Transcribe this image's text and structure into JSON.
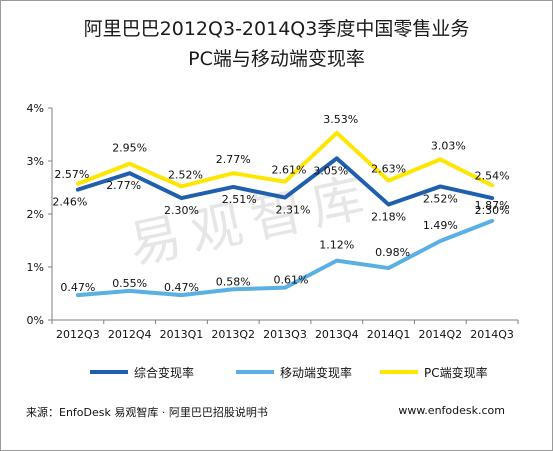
{
  "title_line1": "阿里巴巴2012Q3-2014Q3季度中国零售业务",
  "title_line2": "PC端与移动端变现率",
  "watermark": "易观智库",
  "source_text": "来源：EnfoDesk 易观智库 · 阿里巴巴招股说明书",
  "website": "www.enfodesk.com",
  "chart_data": {
    "type": "line",
    "categories": [
      "2012Q3",
      "2012Q4",
      "2013Q1",
      "2013Q2",
      "2013Q3",
      "2013Q4",
      "2014Q1",
      "2014Q2",
      "2014Q3"
    ],
    "y_ticks": [
      "0%",
      "1%",
      "2%",
      "3%",
      "4%"
    ],
    "ylim": [
      0,
      4
    ],
    "grid": false,
    "legend_position": "bottom",
    "series": [
      {
        "name": "综合变现率",
        "color": "#1f5fad",
        "values": [
          2.46,
          2.77,
          2.3,
          2.51,
          2.31,
          3.05,
          2.18,
          2.52,
          2.3
        ],
        "labels": [
          "2.46%",
          "2.77%",
          "2.30%",
          "2.51%",
          "2.31%",
          "3.05%",
          "2.18%",
          "2.52%",
          "2.30%"
        ]
      },
      {
        "name": "移动端变现率",
        "color": "#5aafe3",
        "values": [
          0.47,
          0.55,
          0.47,
          0.58,
          0.61,
          1.12,
          0.98,
          1.49,
          1.87
        ],
        "labels": [
          "0.47%",
          "0.55%",
          "0.47%",
          "0.58%",
          "0.61%",
          "1.12%",
          "0.98%",
          "1.49%",
          "1.87%"
        ]
      },
      {
        "name": "PC端变现率",
        "color": "#ffe600",
        "values": [
          2.57,
          2.95,
          2.52,
          2.77,
          2.61,
          3.53,
          2.63,
          3.03,
          2.54
        ],
        "labels": [
          "2.57%",
          "2.95%",
          "2.52%",
          "2.77%",
          "2.61%",
          "3.53%",
          "2.63%",
          "3.03%",
          "2.54%"
        ]
      }
    ]
  }
}
